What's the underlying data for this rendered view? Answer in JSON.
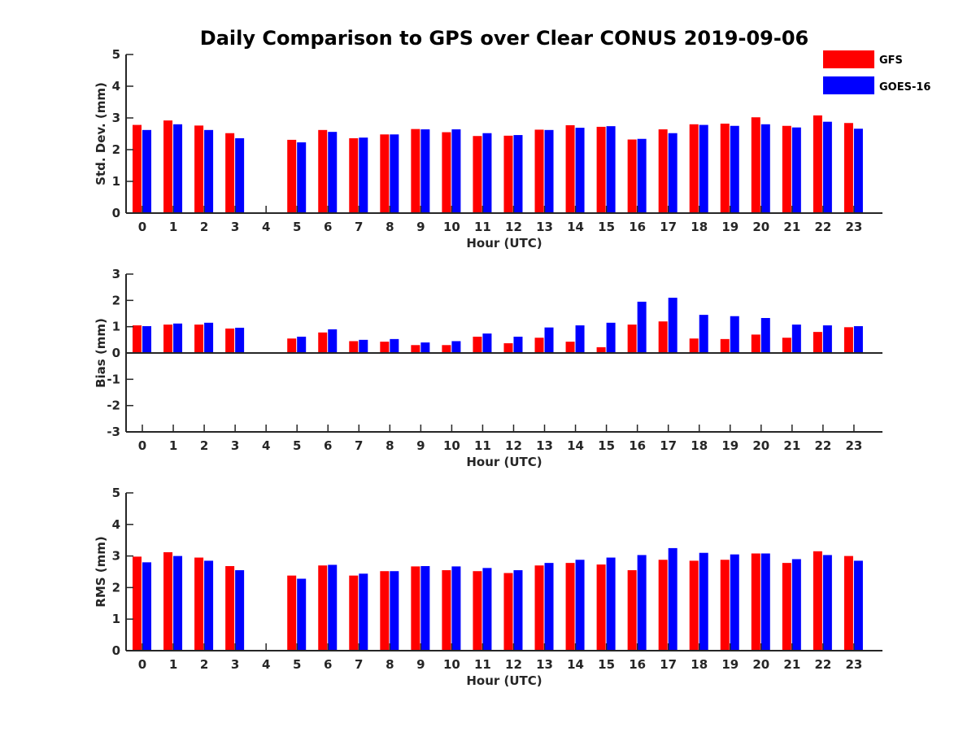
{
  "title": "Daily Comparison to GPS over Clear CONUS 2019-09-06",
  "legend": [
    {
      "name": "GFS",
      "color": "#ff0000"
    },
    {
      "name": "GOES-16",
      "color": "#0000ff"
    }
  ],
  "chart_data": [
    {
      "type": "bar",
      "xlabel": "Hour (UTC)",
      "ylabel": "Std. Dev. (mm)",
      "ylim": [
        0,
        5
      ],
      "yticks": [
        0,
        1,
        2,
        3,
        4,
        5
      ],
      "categories": [
        "0",
        "1",
        "2",
        "3",
        "4",
        "5",
        "6",
        "7",
        "8",
        "9",
        "10",
        "11",
        "12",
        "13",
        "14",
        "15",
        "16",
        "17",
        "18",
        "19",
        "20",
        "21",
        "22",
        "23"
      ],
      "series": [
        {
          "name": "GFS",
          "color": "#ff0000",
          "values": [
            2.78,
            2.92,
            2.76,
            2.52,
            null,
            2.31,
            2.62,
            2.36,
            2.48,
            2.65,
            2.55,
            2.43,
            2.44,
            2.63,
            2.77,
            2.72,
            2.32,
            2.64,
            2.8,
            2.82,
            3.02,
            2.75,
            3.08,
            2.84
          ]
        },
        {
          "name": "GOES-16",
          "color": "#0000ff",
          "values": [
            2.62,
            2.8,
            2.62,
            2.36,
            null,
            2.23,
            2.56,
            2.38,
            2.48,
            2.64,
            2.64,
            2.52,
            2.46,
            2.62,
            2.69,
            2.74,
            2.34,
            2.52,
            2.78,
            2.75,
            2.8,
            2.7,
            2.88,
            2.66
          ]
        }
      ]
    },
    {
      "type": "bar",
      "xlabel": "Hour (UTC)",
      "ylabel": "Bias (mm)",
      "ylim": [
        -3,
        3
      ],
      "yticks": [
        -3,
        -2,
        -1,
        0,
        1,
        2,
        3
      ],
      "categories": [
        "0",
        "1",
        "2",
        "3",
        "4",
        "5",
        "6",
        "7",
        "8",
        "9",
        "10",
        "11",
        "12",
        "13",
        "14",
        "15",
        "16",
        "17",
        "18",
        "19",
        "20",
        "21",
        "22",
        "23"
      ],
      "series": [
        {
          "name": "GFS",
          "color": "#ff0000",
          "values": [
            1.05,
            1.08,
            1.08,
            0.93,
            null,
            0.55,
            0.78,
            0.45,
            0.43,
            0.3,
            0.3,
            0.62,
            0.37,
            0.58,
            0.43,
            0.22,
            1.08,
            1.2,
            0.55,
            0.53,
            0.7,
            0.58,
            0.8,
            0.98
          ]
        },
        {
          "name": "GOES-16",
          "color": "#0000ff",
          "values": [
            1.02,
            1.12,
            1.15,
            0.96,
            null,
            0.62,
            0.9,
            0.5,
            0.53,
            0.4,
            0.45,
            0.74,
            0.62,
            0.97,
            1.05,
            1.15,
            1.95,
            2.1,
            1.45,
            1.4,
            1.33,
            1.08,
            1.05,
            1.02
          ]
        }
      ]
    },
    {
      "type": "bar",
      "xlabel": "Hour (UTC)",
      "ylabel": "RMS (mm)",
      "ylim": [
        0,
        5
      ],
      "yticks": [
        0,
        1,
        2,
        3,
        4,
        5
      ],
      "categories": [
        "0",
        "1",
        "2",
        "3",
        "4",
        "5",
        "6",
        "7",
        "8",
        "9",
        "10",
        "11",
        "12",
        "13",
        "14",
        "15",
        "16",
        "17",
        "18",
        "19",
        "20",
        "21",
        "22",
        "23"
      ],
      "series": [
        {
          "name": "GFS",
          "color": "#ff0000",
          "values": [
            2.98,
            3.12,
            2.95,
            2.68,
            null,
            2.38,
            2.7,
            2.38,
            2.52,
            2.67,
            2.55,
            2.52,
            2.46,
            2.7,
            2.78,
            2.73,
            2.55,
            2.88,
            2.85,
            2.88,
            3.08,
            2.78,
            3.15,
            3.0
          ]
        },
        {
          "name": "GOES-16",
          "color": "#0000ff",
          "values": [
            2.8,
            3.0,
            2.85,
            2.55,
            null,
            2.28,
            2.72,
            2.44,
            2.52,
            2.68,
            2.67,
            2.62,
            2.55,
            2.78,
            2.88,
            2.95,
            3.03,
            3.25,
            3.1,
            3.05,
            3.08,
            2.9,
            3.03,
            2.85
          ]
        }
      ]
    }
  ]
}
